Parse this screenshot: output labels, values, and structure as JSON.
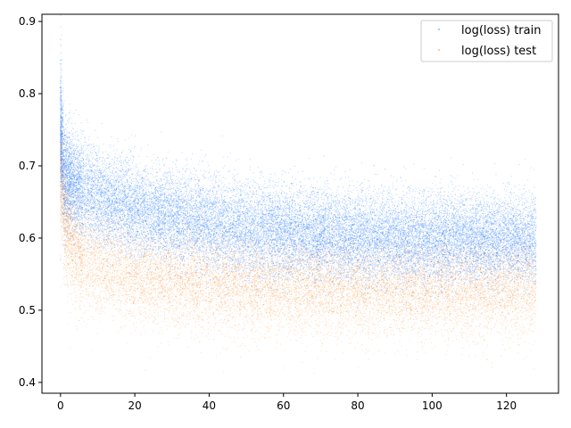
{
  "chart_data": {
    "type": "scatter",
    "title": "",
    "xlabel": "",
    "ylabel": "",
    "xlim": [
      -5,
      134
    ],
    "ylim": [
      0.385,
      0.91
    ],
    "x_ticks": [
      0,
      20,
      40,
      60,
      80,
      100,
      120
    ],
    "x_tick_labels": [
      "0",
      "20",
      "40",
      "60",
      "80",
      "100",
      "120"
    ],
    "y_ticks": [
      0.4,
      0.5,
      0.6,
      0.7,
      0.8,
      0.9
    ],
    "y_tick_labels": [
      "0.4",
      "0.5",
      "0.6",
      "0.7",
      "0.8",
      "0.9"
    ],
    "grid": false,
    "legend_position": "top-right",
    "series": [
      {
        "name": "log(loss) train",
        "color": "#1f77ff",
        "x_range": [
          0,
          128
        ],
        "trend": {
          "x": [
            0,
            1,
            3,
            5,
            10,
            20,
            30,
            40,
            60,
            80,
            100,
            120,
            128
          ],
          "center": [
            0.75,
            0.69,
            0.675,
            0.668,
            0.656,
            0.64,
            0.627,
            0.618,
            0.607,
            0.6,
            0.598,
            0.597,
            0.596
          ],
          "spread": [
            0.05,
            0.035,
            0.033,
            0.033,
            0.033,
            0.032,
            0.032,
            0.032,
            0.032,
            0.032,
            0.032,
            0.03,
            0.03
          ]
        }
      },
      {
        "name": "log(loss) test",
        "color": "#ff7f0e",
        "x_range": [
          0,
          128
        ],
        "trend": {
          "x": [
            0,
            1,
            3,
            5,
            10,
            20,
            30,
            40,
            60,
            80,
            100,
            120,
            128
          ],
          "center": [
            0.7,
            0.63,
            0.595,
            0.58,
            0.565,
            0.55,
            0.542,
            0.538,
            0.533,
            0.53,
            0.53,
            0.531,
            0.532
          ],
          "spread": [
            0.045,
            0.04,
            0.036,
            0.035,
            0.034,
            0.033,
            0.033,
            0.032,
            0.032,
            0.032,
            0.032,
            0.032,
            0.032
          ]
        }
      }
    ]
  }
}
